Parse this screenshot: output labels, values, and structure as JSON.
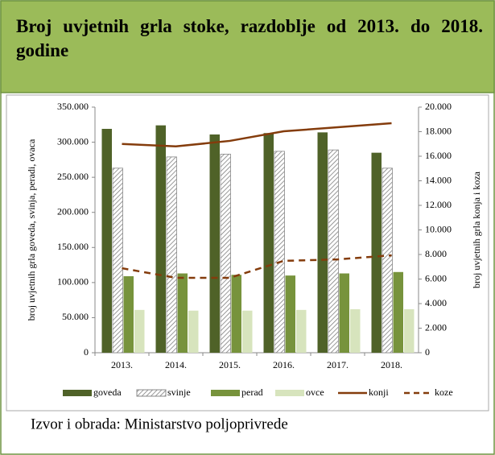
{
  "header": {
    "title": "Broj uvjetnih grla stoke, razdoblje od 2013. do 2018. godine"
  },
  "chart_data": {
    "type": "bar",
    "categories": [
      "2013.",
      "2014.",
      "2015.",
      "2016.",
      "2017.",
      "2018."
    ],
    "ylabel": "broj uvjetnih grla goveda, svinja, peradi, ovaca",
    "y2label": "broj uvjetnih grla konja i koza",
    "ylim": [
      0,
      350000
    ],
    "yticks": [
      0,
      {
        "value": 50000,
        "label": "50.000"
      },
      {
        "value": 100000,
        "label": "100.000"
      },
      {
        "value": 150000,
        "label": "150.000"
      },
      {
        "value": 200000,
        "label": "200.000"
      },
      {
        "value": 250000,
        "label": "250.000"
      },
      {
        "value": 300000,
        "label": "300.000"
      },
      {
        "value": 350000,
        "label": "350.000"
      }
    ],
    "y2lim": [
      0,
      20000
    ],
    "y2ticks": [
      0,
      {
        "value": 2000,
        "label": "2.000"
      },
      {
        "value": 4000,
        "label": "4.000"
      },
      {
        "value": 6000,
        "label": "6.000"
      },
      {
        "value": 8000,
        "label": "8.000"
      },
      {
        "value": 10000,
        "label": "10.000"
      },
      {
        "value": 12000,
        "label": "12.000"
      },
      {
        "value": 14000,
        "label": "14.000"
      },
      {
        "value": 16000,
        "label": "16.000"
      },
      {
        "value": 18000,
        "label": "18.000"
      },
      {
        "value": 20000,
        "label": "20.000"
      }
    ],
    "legend": "bottom",
    "series": [
      {
        "name": "goveda",
        "type": "bar",
        "color": "#4f6228",
        "values": [
          319000,
          324000,
          311000,
          313000,
          314000,
          285000
        ]
      },
      {
        "name": "svinje",
        "type": "bar",
        "color": "hatch",
        "values": [
          263000,
          279000,
          283000,
          287000,
          289000,
          263000
        ]
      },
      {
        "name": "perad",
        "type": "bar",
        "color": "#77933c",
        "values": [
          109000,
          113000,
          111000,
          110000,
          113000,
          115000
        ]
      },
      {
        "name": "ovce",
        "type": "bar",
        "color": "#d7e4bd",
        "values": [
          61000,
          60000,
          60000,
          61000,
          62000,
          62000
        ]
      },
      {
        "name": "konji",
        "type": "line",
        "axis": "y2",
        "color": "#843c0c",
        "dashed": false,
        "values": [
          17000,
          16800,
          17250,
          18030,
          18360,
          18690
        ]
      },
      {
        "name": "koze",
        "type": "line",
        "axis": "y2",
        "color": "#843c0c",
        "dashed": true,
        "values": [
          6880,
          6100,
          6100,
          7480,
          7600,
          7930
        ]
      }
    ]
  },
  "footer": {
    "source": "Izvor i obrada: Ministarstvo poljoprivrede"
  }
}
